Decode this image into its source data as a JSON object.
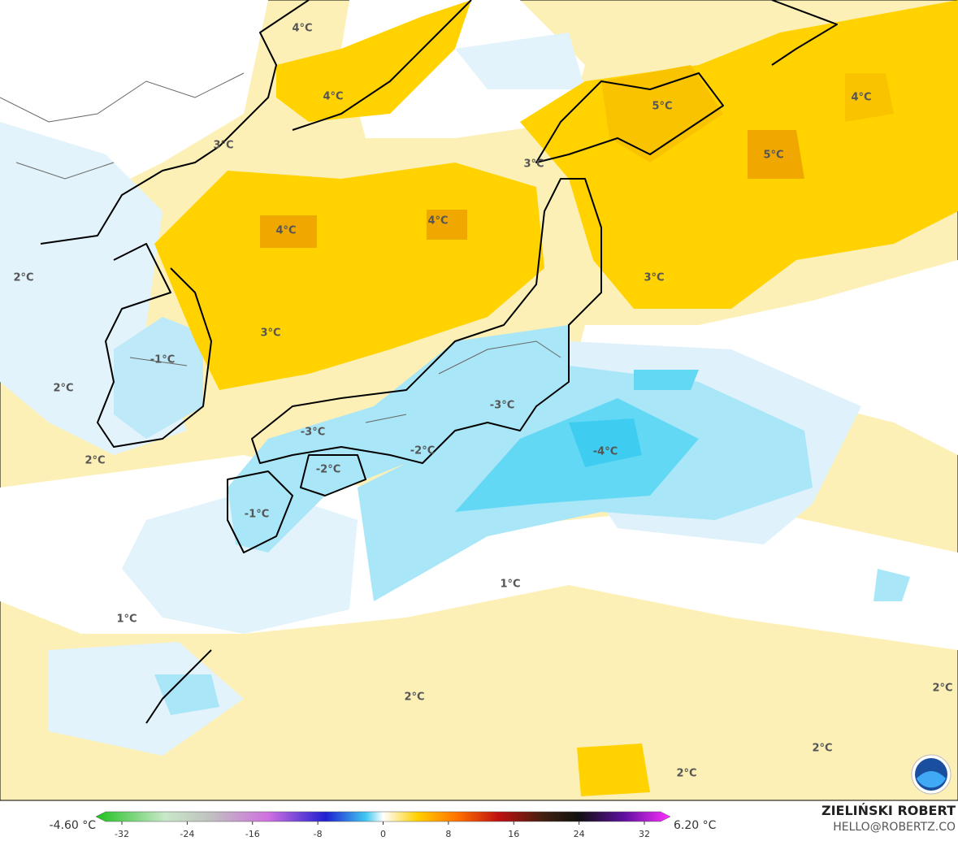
{
  "map": {
    "contour_labels": [
      "4°C",
      "4°C",
      "5°C",
      "4°C",
      "5°C",
      "3°C",
      "3°C",
      "4°C",
      "4°C",
      "3°C",
      "2°C",
      "3°C",
      "-1°C",
      "2°C",
      "-3°C",
      "-3°C",
      "-4°C",
      "-2°C",
      "-2°C",
      "2°C",
      "-1°C",
      "1°C",
      "1°C",
      "2°C",
      "2°C",
      "2°C",
      "2°C"
    ]
  },
  "colorbar": {
    "min_label": "-4.60 °C",
    "max_label": "6.20 °C",
    "ticks": [
      "-32",
      "-24",
      "-16",
      "-8",
      "0",
      "8",
      "16",
      "24",
      "32"
    ]
  },
  "credits": {
    "author": "ZIELIŃSKI ROBERT",
    "contact": "HELLO@ROBERTZ.CO"
  }
}
